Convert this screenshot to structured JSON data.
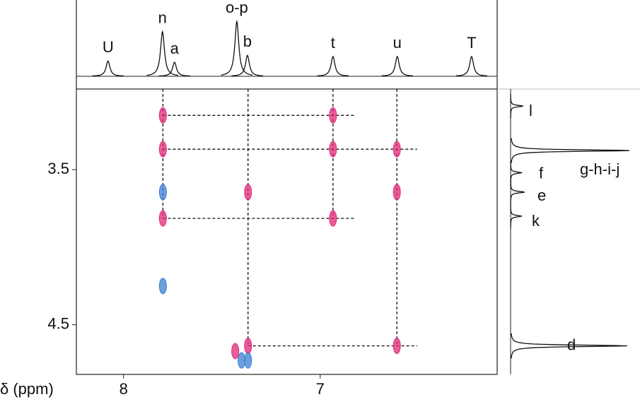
{
  "chart_data": {
    "type": "nmr2d",
    "x_axis_label": "δ (ppm)",
    "xlim": [
      8.24,
      6.1
    ],
    "xticks": [
      8,
      7
    ],
    "ylim": [
      2.98,
      4.82
    ],
    "yticks": [
      3.5,
      4.5
    ],
    "top_spectrum": [
      {
        "label": "U",
        "ppm": 8.079,
        "height": 27
      },
      {
        "label": "n",
        "ppm": 7.802,
        "height": 79
      },
      {
        "label": "a",
        "ppm": 7.741,
        "height": 25
      },
      {
        "label": "o-p",
        "ppm": 7.424,
        "height": 97
      },
      {
        "label": "b",
        "ppm": 7.37,
        "height": 37
      },
      {
        "label": "t",
        "ppm": 6.935,
        "height": 35
      },
      {
        "label": "u",
        "ppm": 6.608,
        "height": 35
      },
      {
        "label": "T",
        "ppm": 6.23,
        "height": 35
      }
    ],
    "side_spectrum": [
      {
        "label": "l",
        "ppm": 3.09,
        "height": 22
      },
      {
        "label": "g-h-i-j",
        "ppm": 3.377,
        "height": 210
      },
      {
        "label": "f",
        "ppm": 3.52,
        "height": 19
      },
      {
        "label": "e",
        "ppm": 3.645,
        "height": 25
      },
      {
        "label": "k",
        "ppm": 3.8,
        "height": 19
      },
      {
        "label": "d",
        "ppm": 4.636,
        "height": 206
      }
    ],
    "series": [
      {
        "color": "#e0287a",
        "x": [
          7.8,
          6.935,
          7.8,
          6.935,
          6.61,
          7.367,
          6.61,
          7.8,
          6.935,
          7.367,
          6.61,
          7.432
        ],
        "y": [
          3.15,
          3.15,
          3.368,
          3.368,
          3.368,
          3.645,
          3.645,
          3.814,
          3.814,
          4.636,
          4.636,
          4.67
        ]
      },
      {
        "color": "#3a7fd0",
        "x": [
          7.8,
          7.8,
          7.367,
          7.4
        ],
        "y": [
          3.645,
          4.25,
          4.73,
          4.73
        ]
      }
    ],
    "guides_vertical": [
      {
        "x": 7.8,
        "y_to": 3.814
      },
      {
        "x": 7.367,
        "y_to": 4.636
      },
      {
        "x": 6.935,
        "y_to": 3.814
      },
      {
        "x": 6.61,
        "y_to": 4.636
      }
    ],
    "guides_horizontal": [
      {
        "y": 3.15,
        "x_from": 7.8,
        "x_to": 6.827
      },
      {
        "y": 3.368,
        "x_from": 7.8,
        "x_to": 6.507
      },
      {
        "y": 3.814,
        "x_from": 7.8,
        "x_to": 6.827
      },
      {
        "y": 4.636,
        "x_from": 7.367,
        "x_to": 6.507
      }
    ]
  }
}
